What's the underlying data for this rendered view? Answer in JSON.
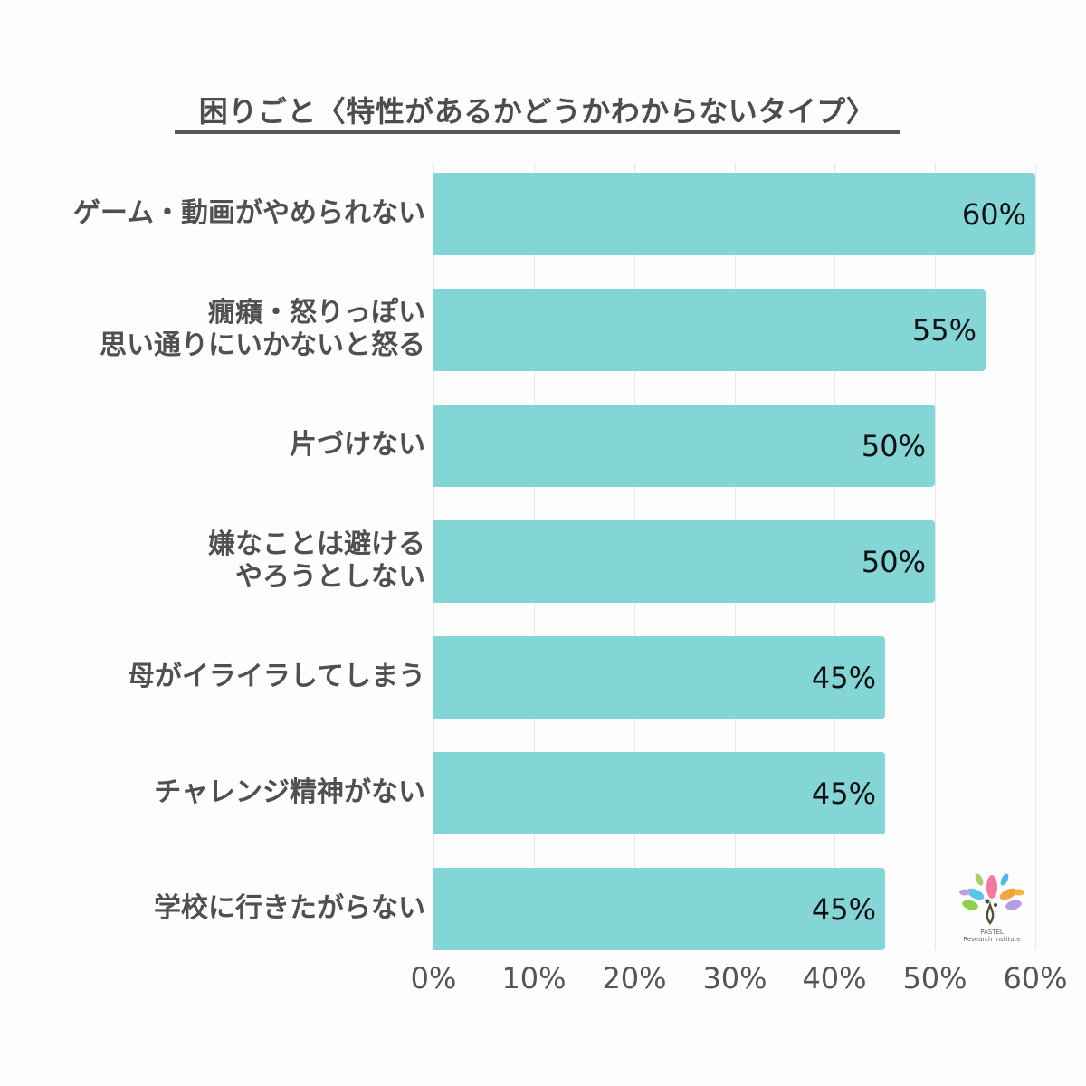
{
  "title": "困りごと〈特性があるかどうかわからないタイプ〉",
  "logo": {
    "name": "PASTEL Research Institute",
    "line1": "PASTEL",
    "line2": "Research Institute"
  },
  "axis": {
    "ticks": [
      "0%",
      "10%",
      "20%",
      "30%",
      "40%",
      "50%",
      "60%"
    ]
  },
  "bars": [
    {
      "label_lines": [
        "ゲーム・動画がやめられない"
      ],
      "value": 60,
      "value_label": "60%"
    },
    {
      "label_lines": [
        "癇癪・怒りっぽい",
        "思い通りにいかないと怒る"
      ],
      "value": 55,
      "value_label": "55%"
    },
    {
      "label_lines": [
        "片づけない"
      ],
      "value": 50,
      "value_label": "50%"
    },
    {
      "label_lines": [
        "嫌なことは避ける",
        "やろうとしない"
      ],
      "value": 50,
      "value_label": "50%"
    },
    {
      "label_lines": [
        "母がイライラしてしまう"
      ],
      "value": 45,
      "value_label": "45%"
    },
    {
      "label_lines": [
        "チャレンジ精神がない"
      ],
      "value": 45,
      "value_label": "45%"
    },
    {
      "label_lines": [
        "学校に行きたがらない"
      ],
      "value": 45,
      "value_label": "45%"
    }
  ],
  "colors": {
    "bar": "#84d5d5",
    "text": "#505050",
    "grid": "#e6e6ea"
  },
  "chart_data": {
    "type": "bar",
    "orientation": "horizontal",
    "title": "困りごと〈特性があるかどうかわからないタイプ〉",
    "categories": [
      "ゲーム・動画がやめられない",
      "癇癪・怒りっぽい／思い通りにいかないと怒る",
      "片づけない",
      "嫌なことは避ける／やろうとしない",
      "母がイライラしてしまう",
      "チャレンジ精神がない",
      "学校に行きたがらない"
    ],
    "values": [
      60,
      55,
      50,
      50,
      45,
      45,
      45
    ],
    "xlabel": "",
    "ylabel": "",
    "xlim": [
      0,
      60
    ],
    "x_ticks": [
      "0%",
      "10%",
      "20%",
      "30%",
      "40%",
      "50%",
      "60%"
    ],
    "grid": true,
    "data_labels": true,
    "legend": null
  }
}
